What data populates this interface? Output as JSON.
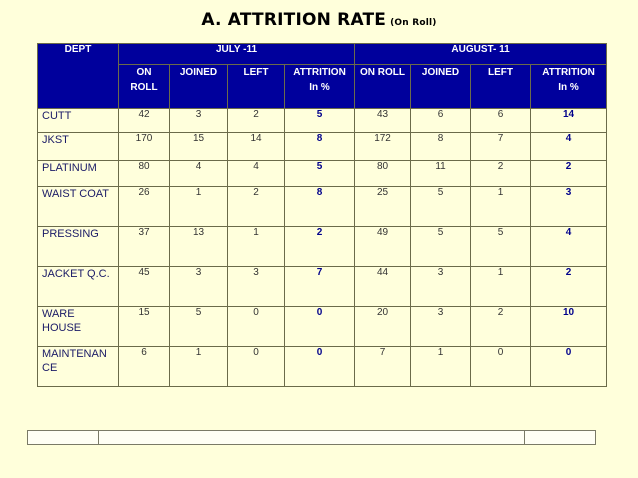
{
  "title": {
    "main": "A. ATTRITION RATE",
    "sub": "(On Roll)"
  },
  "table": {
    "dept_header": "DEPT",
    "months": [
      {
        "label": "JULY -11"
      },
      {
        "label": "AUGUST- 11"
      }
    ],
    "sub_headers": [
      [
        "ON",
        "ROLL"
      ],
      [
        "JOINED"
      ],
      [
        "LEFT"
      ],
      [
        "ATTRITION",
        "In %"
      ],
      [
        "ON ROLL"
      ],
      [
        "JOINED"
      ],
      [
        "LEFT"
      ],
      [
        "ATTRITION",
        "In %"
      ]
    ],
    "rows": [
      {
        "dept": "CUTT",
        "jul": [
          "42",
          "3",
          "2",
          "5"
        ],
        "aug": [
          "43",
          "6",
          "6",
          "14"
        ]
      },
      {
        "dept": "JKST",
        "jul": [
          "170",
          "15",
          "14",
          "8"
        ],
        "aug": [
          "172",
          "8",
          "7",
          "4"
        ]
      },
      {
        "dept": "PLATINUM",
        "jul": [
          "80",
          "4",
          "4",
          "5"
        ],
        "aug": [
          "80",
          "11",
          "2",
          "2"
        ]
      },
      {
        "dept": "WAIST COAT",
        "jul": [
          "26",
          "1",
          "2",
          "8"
        ],
        "aug": [
          "25",
          "5",
          "1",
          "3"
        ]
      },
      {
        "dept": "PRESSING",
        "jul": [
          "37",
          "13",
          "1",
          "2"
        ],
        "aug": [
          "49",
          "5",
          "5",
          "4"
        ]
      },
      {
        "dept": "JACKET Q.C.",
        "jul": [
          "45",
          "3",
          "3",
          "7"
        ],
        "aug": [
          "44",
          "3",
          "1",
          "2"
        ]
      },
      {
        "dept": "WARE HOUSE",
        "jul": [
          "15",
          "5",
          "0",
          "0"
        ],
        "aug": [
          "20",
          "3",
          "2",
          "10"
        ]
      },
      {
        "dept": "MAINTENAN CE",
        "jul": [
          "6",
          "1",
          "0",
          "0"
        ],
        "aug": [
          "7",
          "1",
          "0",
          "0"
        ]
      }
    ]
  },
  "colors": {
    "header_bg": "#00009c",
    "cell_bg": "#ffffdc",
    "attrition_text": "#00008b",
    "page_bg": "#ffffdb"
  }
}
